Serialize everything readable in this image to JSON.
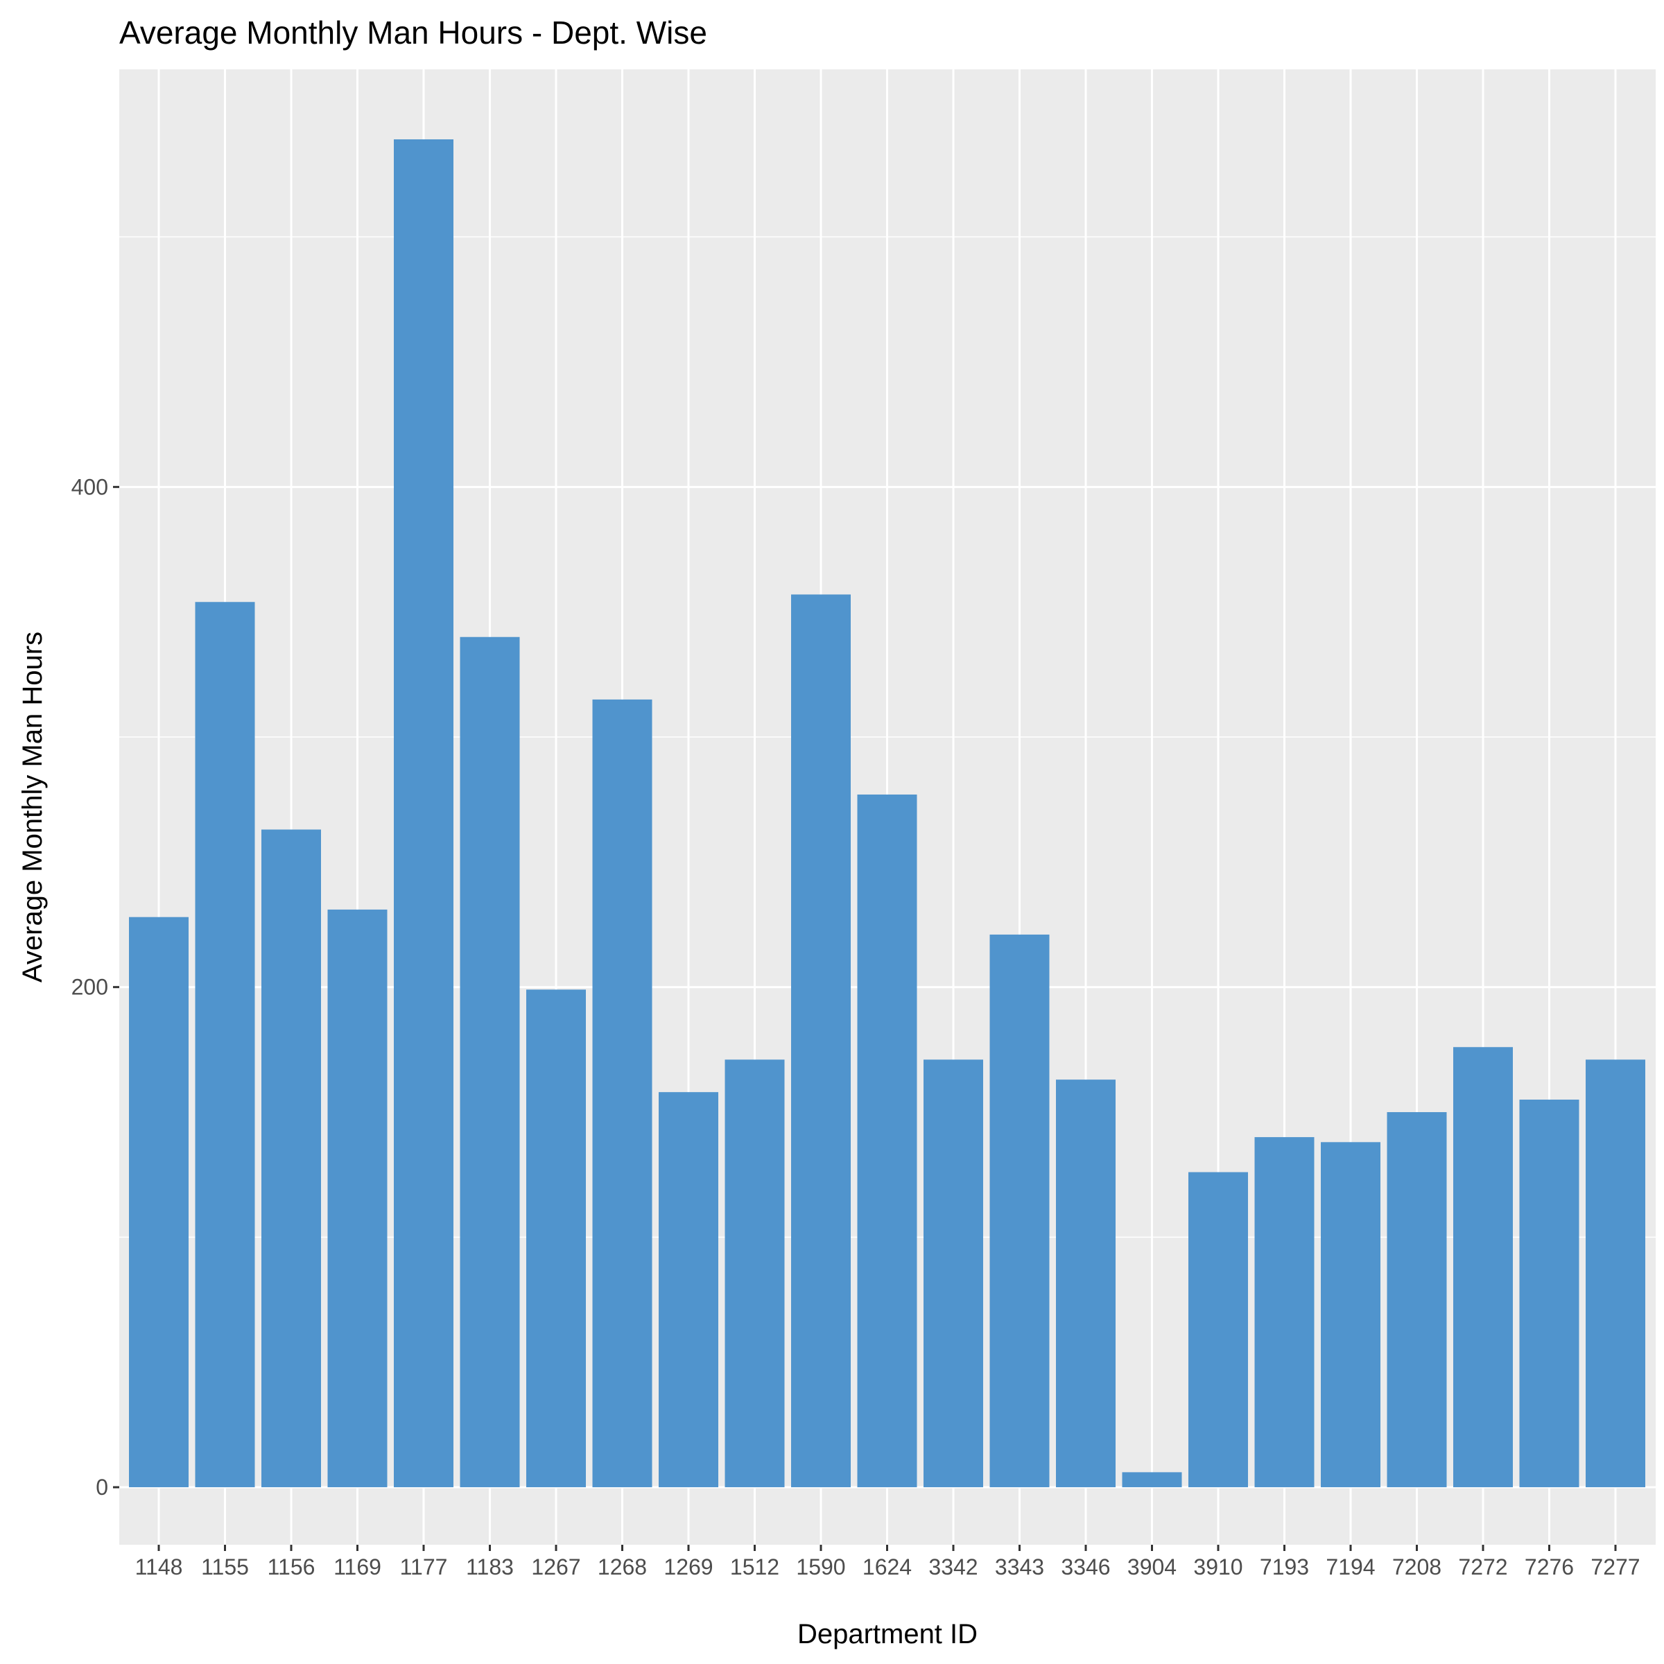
{
  "chart_data": {
    "type": "bar",
    "title": "Average Monthly Man Hours - Dept. Wise",
    "xlabel": "Department ID",
    "ylabel": "Average Monthly Man Hours",
    "categories": [
      "1148",
      "1155",
      "1156",
      "1169",
      "1177",
      "1183",
      "1267",
      "1268",
      "1269",
      "1512",
      "1590",
      "1624",
      "3342",
      "3343",
      "3346",
      "3904",
      "3910",
      "7193",
      "7194",
      "7208",
      "7272",
      "7276",
      "7277"
    ],
    "values": [
      228,
      354,
      263,
      231,
      539,
      340,
      199,
      315,
      158,
      171,
      357,
      277,
      171,
      221,
      163,
      6,
      126,
      140,
      138,
      150,
      176,
      155,
      171
    ],
    "ylim": [
      -23,
      567
    ],
    "yticks": [
      0,
      200,
      400
    ],
    "ytick_labels": [
      "0",
      "200",
      "400"
    ],
    "grid": true,
    "legend": "none",
    "colors": {
      "bar": "#5094CD",
      "panel": "#EBEBEB",
      "grid": "#FFFFFF",
      "tick_text": "#4D4D4D",
      "text": "#000000"
    }
  }
}
